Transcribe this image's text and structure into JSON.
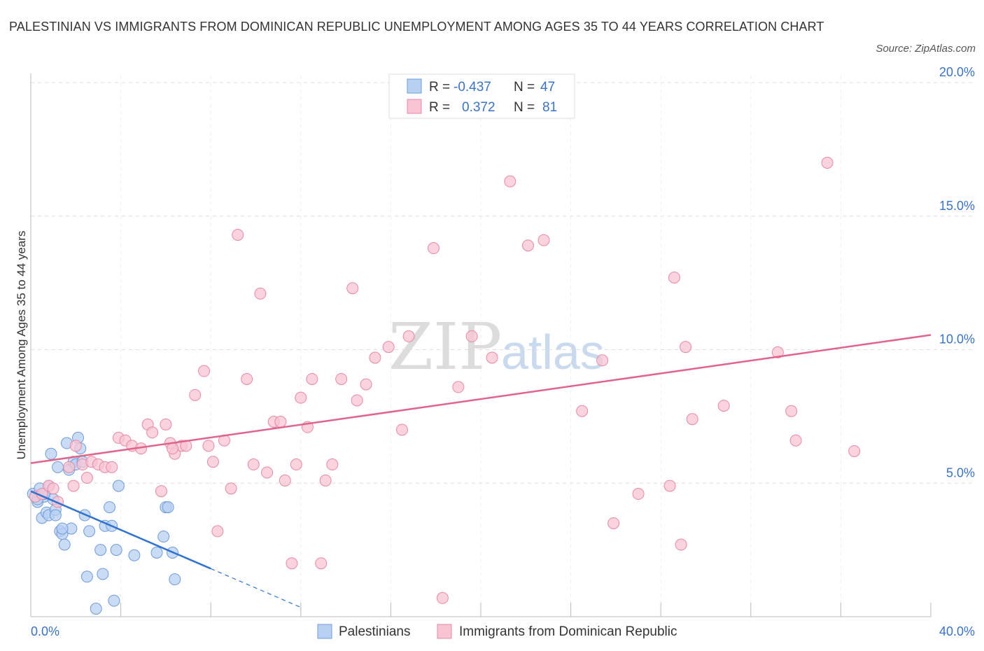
{
  "title": "PALESTINIAN VS IMMIGRANTS FROM DOMINICAN REPUBLIC UNEMPLOYMENT AMONG AGES 35 TO 44 YEARS CORRELATION CHART",
  "source": "Source: ZipAtlas.com",
  "watermark": {
    "zip": "ZIP",
    "atlas": "atlas"
  },
  "colors": {
    "palestinians_fill": "#b8d0f2",
    "palestinians_stroke": "#6f9bd8",
    "palestinians_line": "#2f72d0",
    "dominican_fill": "#f8c4d3",
    "dominican_stroke": "#e58aa6",
    "dominican_line": "#e0648c",
    "tick_text": "#3a72c4",
    "grid": "#dddddd"
  },
  "legend": {
    "rows": [
      {
        "r_label": "R =",
        "r_value": "-0.437",
        "n_label": "N =",
        "n_value": "47"
      },
      {
        "r_label": "R =",
        "r_value": " 0.372",
        "n_label": "N =",
        "n_value": "81"
      }
    ]
  },
  "chart_data": {
    "type": "scatter",
    "title": "PALESTINIAN VS IMMIGRANTS FROM DOMINICAN REPUBLIC UNEMPLOYMENT AMONG AGES 35 TO 44 YEARS CORRELATION CHART",
    "xlabel": "",
    "ylabel": "Unemployment Among Ages 35 to 44 years",
    "xlim": [
      0,
      40
    ],
    "ylim": [
      0,
      20
    ],
    "x_tick_labels": [
      "0.0%",
      "40.0%"
    ],
    "y_ticks": [
      5,
      10,
      15,
      20
    ],
    "y_tick_labels": [
      "5.0%",
      "10.0%",
      "15.0%",
      "20.0%"
    ],
    "grid": true,
    "legend_position": "bottom",
    "series": [
      {
        "name": "Palestinians",
        "r": -0.437,
        "n": 47,
        "trend": {
          "x0": 0,
          "y0": 4.7,
          "x1": 8.0,
          "y1": 1.8,
          "dash_to_x": 12.0
        },
        "points": [
          [
            0.1,
            4.6
          ],
          [
            0.2,
            4.5
          ],
          [
            0.3,
            4.3
          ],
          [
            0.4,
            4.8
          ],
          [
            0.5,
            3.7
          ],
          [
            0.6,
            4.5
          ],
          [
            0.7,
            3.9
          ],
          [
            0.8,
            3.8
          ],
          [
            0.8,
            4.9
          ],
          [
            0.9,
            6.1
          ],
          [
            1.0,
            4.4
          ],
          [
            1.1,
            4.0
          ],
          [
            1.1,
            3.8
          ],
          [
            1.2,
            5.6
          ],
          [
            1.3,
            3.2
          ],
          [
            1.4,
            3.1
          ],
          [
            1.5,
            2.7
          ],
          [
            1.6,
            6.5
          ],
          [
            1.7,
            5.5
          ],
          [
            1.8,
            3.3
          ],
          [
            1.9,
            5.8
          ],
          [
            2.0,
            5.7
          ],
          [
            2.1,
            6.7
          ],
          [
            2.2,
            6.3
          ],
          [
            2.3,
            5.8
          ],
          [
            2.4,
            3.8
          ],
          [
            2.5,
            1.5
          ],
          [
            2.6,
            3.2
          ],
          [
            2.9,
            0.3
          ],
          [
            3.1,
            2.5
          ],
          [
            3.2,
            1.6
          ],
          [
            3.3,
            3.4
          ],
          [
            3.5,
            4.1
          ],
          [
            3.6,
            3.4
          ],
          [
            3.7,
            0.6
          ],
          [
            3.8,
            2.5
          ],
          [
            3.9,
            4.9
          ],
          [
            4.6,
            2.3
          ],
          [
            5.6,
            2.4
          ],
          [
            5.9,
            3.0
          ],
          [
            6.0,
            4.1
          ],
          [
            6.1,
            4.1
          ],
          [
            6.3,
            2.4
          ],
          [
            6.4,
            1.4
          ],
          [
            0.3,
            4.4
          ],
          [
            0.6,
            4.6
          ],
          [
            1.4,
            3.3
          ]
        ]
      },
      {
        "name": "Immigrants from Dominican Republic",
        "r": 0.372,
        "n": 81,
        "trend": {
          "x0": 0,
          "y0": 5.75,
          "x1": 40,
          "y1": 10.55
        },
        "points": [
          [
            0.2,
            4.5
          ],
          [
            0.5,
            4.6
          ],
          [
            0.8,
            4.9
          ],
          [
            1.0,
            4.8
          ],
          [
            1.2,
            4.3
          ],
          [
            1.7,
            5.6
          ],
          [
            1.9,
            4.9
          ],
          [
            2.0,
            6.4
          ],
          [
            2.3,
            5.7
          ],
          [
            2.5,
            5.2
          ],
          [
            2.7,
            5.8
          ],
          [
            3.0,
            5.7
          ],
          [
            3.3,
            5.6
          ],
          [
            3.6,
            5.6
          ],
          [
            3.9,
            6.7
          ],
          [
            4.2,
            6.6
          ],
          [
            4.5,
            6.4
          ],
          [
            4.9,
            6.3
          ],
          [
            5.2,
            7.2
          ],
          [
            5.4,
            6.9
          ],
          [
            5.8,
            4.7
          ],
          [
            6.0,
            7.2
          ],
          [
            6.2,
            6.5
          ],
          [
            6.4,
            6.1
          ],
          [
            6.7,
            6.4
          ],
          [
            6.9,
            6.4
          ],
          [
            7.3,
            8.3
          ],
          [
            7.7,
            9.2
          ],
          [
            7.9,
            6.4
          ],
          [
            8.1,
            5.8
          ],
          [
            8.3,
            3.2
          ],
          [
            8.6,
            6.6
          ],
          [
            8.9,
            4.8
          ],
          [
            9.2,
            14.3
          ],
          [
            9.6,
            8.9
          ],
          [
            9.9,
            5.7
          ],
          [
            10.2,
            12.1
          ],
          [
            10.5,
            5.4
          ],
          [
            10.8,
            7.3
          ],
          [
            11.1,
            7.3
          ],
          [
            11.3,
            5.1
          ],
          [
            11.6,
            2.0
          ],
          [
            11.8,
            5.7
          ],
          [
            12.0,
            8.2
          ],
          [
            12.3,
            7.1
          ],
          [
            12.5,
            8.9
          ],
          [
            12.9,
            2.0
          ],
          [
            13.1,
            5.1
          ],
          [
            13.4,
            5.7
          ],
          [
            13.8,
            8.9
          ],
          [
            14.3,
            12.3
          ],
          [
            14.5,
            8.1
          ],
          [
            14.9,
            8.7
          ],
          [
            15.3,
            9.7
          ],
          [
            15.9,
            10.1
          ],
          [
            16.5,
            7.0
          ],
          [
            16.8,
            10.5
          ],
          [
            17.9,
            13.8
          ],
          [
            18.3,
            0.7
          ],
          [
            19.0,
            8.6
          ],
          [
            19.6,
            10.5
          ],
          [
            20.5,
            9.7
          ],
          [
            21.3,
            16.3
          ],
          [
            22.1,
            13.9
          ],
          [
            22.8,
            14.1
          ],
          [
            24.5,
            7.7
          ],
          [
            25.4,
            9.6
          ],
          [
            25.9,
            3.5
          ],
          [
            27.0,
            4.6
          ],
          [
            28.4,
            4.9
          ],
          [
            28.6,
            12.7
          ],
          [
            28.9,
            2.7
          ],
          [
            29.1,
            10.1
          ],
          [
            29.4,
            7.4
          ],
          [
            30.8,
            7.9
          ],
          [
            33.2,
            9.9
          ],
          [
            33.8,
            7.7
          ],
          [
            34.0,
            6.6
          ],
          [
            35.4,
            17.0
          ],
          [
            36.6,
            6.2
          ],
          [
            6.3,
            6.3
          ]
        ]
      }
    ]
  },
  "bottom_legend": {
    "items": [
      "Palestinians",
      "Immigrants from Dominican Republic"
    ]
  }
}
